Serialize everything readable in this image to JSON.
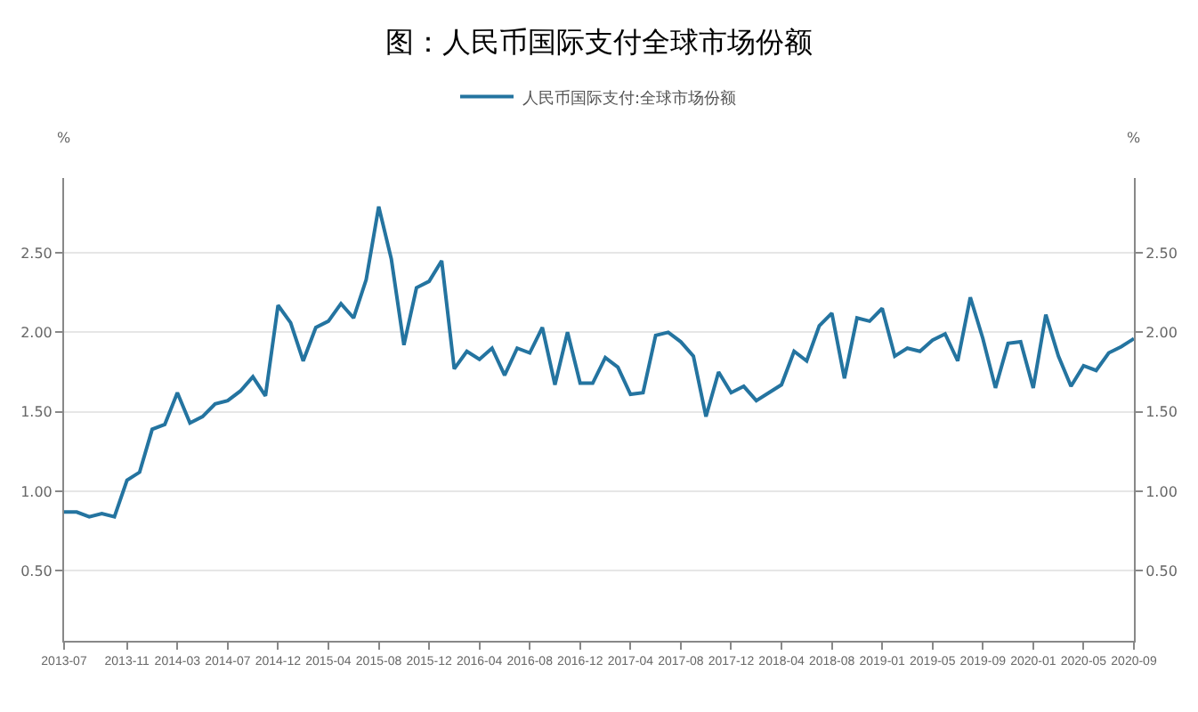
{
  "chart_data": {
    "type": "line",
    "title": "图：人民币国际支付全球市场份额",
    "categories": [
      "2013-07",
      null,
      null,
      null,
      null,
      "2013-11",
      null,
      null,
      null,
      "2014-03",
      null,
      null,
      null,
      "2014-07",
      null,
      null,
      null,
      "2014-12",
      null,
      null,
      null,
      "2015-04",
      null,
      null,
      null,
      "2015-08",
      null,
      null,
      null,
      "2015-12",
      null,
      null,
      null,
      "2016-04",
      null,
      null,
      null,
      "2016-08",
      null,
      null,
      null,
      "2016-12",
      null,
      null,
      null,
      "2017-04",
      null,
      null,
      null,
      "2017-08",
      null,
      null,
      null,
      "2017-12",
      null,
      null,
      null,
      "2018-04",
      null,
      null,
      null,
      "2018-08",
      null,
      null,
      null,
      "2019-01",
      null,
      null,
      null,
      "2019-05",
      null,
      null,
      null,
      "2019-09",
      null,
      null,
      null,
      "2020-01",
      null,
      null,
      null,
      "2020-05",
      null,
      null,
      null,
      "2020-09"
    ],
    "series": [
      {
        "name": "人民币国际支付:全球市场份额",
        "color": "#2474a0",
        "values": [
          0.87,
          0.87,
          0.84,
          0.86,
          0.84,
          1.07,
          1.12,
          1.39,
          1.42,
          1.62,
          1.43,
          1.47,
          1.55,
          1.57,
          1.63,
          1.72,
          1.6,
          2.17,
          2.06,
          1.82,
          2.03,
          2.07,
          2.18,
          2.09,
          2.33,
          2.79,
          2.46,
          1.92,
          2.28,
          2.32,
          2.45,
          1.77,
          1.88,
          1.83,
          1.9,
          1.73,
          1.9,
          1.87,
          2.03,
          1.67,
          2.0,
          1.68,
          1.68,
          1.84,
          1.78,
          1.61,
          1.62,
          1.98,
          2.0,
          1.94,
          1.85,
          1.47,
          1.75,
          1.62,
          1.66,
          1.57,
          1.62,
          1.67,
          1.88,
          1.82,
          2.04,
          2.12,
          1.71,
          2.09,
          2.07,
          2.15,
          1.85,
          1.9,
          1.88,
          1.95,
          1.99,
          1.82,
          2.22,
          1.96,
          1.65,
          1.93,
          1.94,
          1.65,
          2.11,
          1.85,
          1.66,
          1.79,
          1.76,
          1.87,
          1.91,
          1.96
        ]
      }
    ],
    "ylabel": "%",
    "y2label": "%",
    "ylim": [
      0.06,
      2.97
    ],
    "yticks": [
      {
        "value": 0.5,
        "label": "0.50"
      },
      {
        "value": 1.0,
        "label": "1.00"
      },
      {
        "value": 1.5,
        "label": "1.50"
      },
      {
        "value": 2.0,
        "label": "2.00"
      },
      {
        "value": 2.5,
        "label": "2.50"
      }
    ],
    "y2lim": [
      0.06,
      2.97
    ],
    "y2ticks": [
      {
        "value": 0.5,
        "label": "0.50"
      },
      {
        "value": 1.0,
        "label": "1.00"
      },
      {
        "value": 1.5,
        "label": "1.50"
      },
      {
        "value": 2.0,
        "label": "2.00"
      },
      {
        "value": 2.5,
        "label": "2.50"
      }
    ],
    "grid": "y",
    "legend": "top",
    "marker": "none",
    "line_style": "solid"
  }
}
